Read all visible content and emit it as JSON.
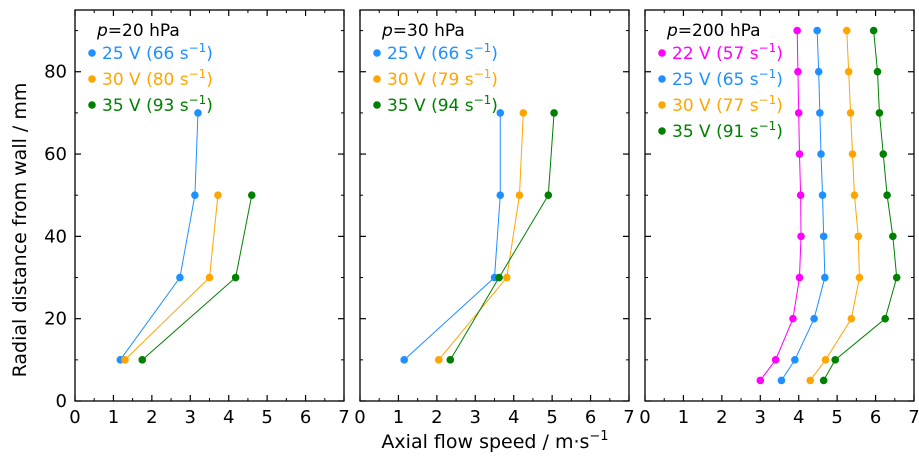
{
  "figure": {
    "xlabel": "Axial flow speed / m·s",
    "xlabel_sup": "−1",
    "ylabel": "Radial distance from wall / mm",
    "colors": {
      "22V": "#ff00ff",
      "25V": "#1e90ff",
      "30V": "#ffa500",
      "35V": "#008000"
    }
  },
  "chart_data": [
    {
      "type": "line",
      "title_p": "p",
      "title_rest": "=20 hPa",
      "xlim": [
        0,
        7
      ],
      "ylim": [
        0,
        95
      ],
      "xticks": [
        "0",
        "1",
        "2",
        "3",
        "4",
        "5",
        "6",
        "7"
      ],
      "yticks": [
        "0",
        "20",
        "40",
        "60",
        "80"
      ],
      "series": [
        {
          "name": "25 V (66 s",
          "sup": "−1",
          "close": ")",
          "color": "#1e90ff",
          "x": [
            1.18,
            2.73,
            3.12,
            3.2
          ],
          "y": [
            10,
            30,
            50,
            70
          ]
        },
        {
          "name": "30 V (80 s",
          "sup": "−1",
          "close": ")",
          "color": "#ffa500",
          "x": [
            1.3,
            3.5,
            3.72
          ],
          "y": [
            10,
            30,
            50
          ]
        },
        {
          "name": "35 V (93 s",
          "sup": "−1",
          "close": ")",
          "color": "#008000",
          "x": [
            1.75,
            4.18,
            4.6
          ],
          "y": [
            10,
            30,
            50
          ]
        }
      ]
    },
    {
      "type": "line",
      "title_p": "p",
      "title_rest": "=30 hPa",
      "xlim": [
        0,
        7
      ],
      "ylim": [
        0,
        95
      ],
      "xticks": [
        "0",
        "1",
        "2",
        "3",
        "4",
        "5",
        "6",
        "7"
      ],
      "yticks": [
        "0",
        "20",
        "40",
        "60",
        "80"
      ],
      "series": [
        {
          "name": "25 V (66 s",
          "sup": "−1",
          "close": ")",
          "color": "#1e90ff",
          "x": [
            1.15,
            3.5,
            3.65,
            3.65
          ],
          "y": [
            10,
            30,
            50,
            70
          ]
        },
        {
          "name": "30 V (79 s",
          "sup": "−1",
          "close": ")",
          "color": "#ffa500",
          "x": [
            2.05,
            3.82,
            4.15,
            4.25
          ],
          "y": [
            10,
            30,
            50,
            70
          ]
        },
        {
          "name": "35 V (94 s",
          "sup": "−1",
          "close": ")",
          "color": "#008000",
          "x": [
            2.35,
            3.62,
            4.9,
            5.05
          ],
          "y": [
            10,
            30,
            50,
            70
          ]
        }
      ]
    },
    {
      "type": "line",
      "title_p": "p",
      "title_rest": "=200 hPa",
      "xlim": [
        0,
        7
      ],
      "ylim": [
        0,
        95
      ],
      "xticks": [
        "0",
        "1",
        "2",
        "3",
        "4",
        "5",
        "6",
        "7"
      ],
      "yticks": [
        "0",
        "20",
        "40",
        "60",
        "80"
      ],
      "series": [
        {
          "name": "22 V (57 s",
          "sup": "−1",
          "close": ")",
          "color": "#ff00ff",
          "x": [
            3.0,
            3.4,
            3.85,
            4.02,
            4.06,
            4.05,
            4.02,
            4.0,
            3.98,
            3.96
          ],
          "y": [
            5,
            10,
            20,
            30,
            40,
            50,
            60,
            70,
            80,
            90
          ]
        },
        {
          "name": "25 V (65 s",
          "sup": "−1",
          "close": ")",
          "color": "#1e90ff",
          "x": [
            3.55,
            3.9,
            4.4,
            4.68,
            4.65,
            4.62,
            4.58,
            4.55,
            4.52,
            4.48
          ],
          "y": [
            5,
            10,
            20,
            30,
            40,
            50,
            60,
            70,
            80,
            90
          ]
        },
        {
          "name": "30 V (77 s",
          "sup": "−1",
          "close": ")",
          "color": "#ffa500",
          "x": [
            4.3,
            4.7,
            5.37,
            5.58,
            5.55,
            5.45,
            5.4,
            5.35,
            5.3,
            5.25
          ],
          "y": [
            5,
            10,
            20,
            30,
            40,
            50,
            60,
            70,
            80,
            90
          ]
        },
        {
          "name": "35 V (91 s",
          "sup": "−1",
          "close": ")",
          "color": "#008000",
          "x": [
            4.65,
            4.95,
            6.25,
            6.55,
            6.45,
            6.3,
            6.2,
            6.1,
            6.05,
            5.95
          ],
          "y": [
            5,
            10,
            20,
            30,
            40,
            50,
            60,
            70,
            80,
            90
          ]
        }
      ]
    }
  ]
}
